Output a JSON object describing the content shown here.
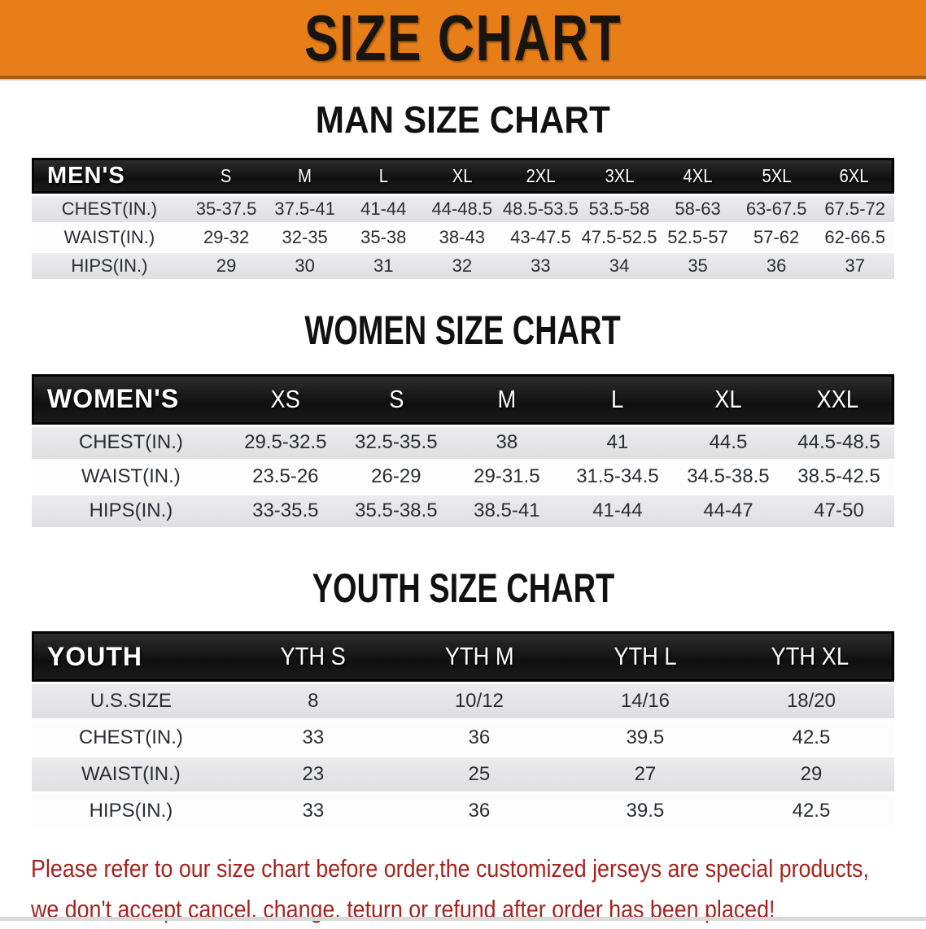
{
  "banner": {
    "title": "SIZE CHART",
    "bg_color": "#e87e18"
  },
  "sections": [
    {
      "id": "mens",
      "heading": "MAN SIZE CHART",
      "label": "MEN'S",
      "columns": [
        "S",
        "M",
        "L",
        "XL",
        "2XL",
        "3XL",
        "4XL",
        "5XL",
        "6XL"
      ],
      "rows": [
        {
          "label": "CHEST(IN.)",
          "values": [
            "35-37.5",
            "37.5-41",
            "41-44",
            "44-48.5",
            "48.5-53.5",
            "53.5-58",
            "58-63",
            "63-67.5",
            "67.5-72"
          ]
        },
        {
          "label": "WAIST(IN.)",
          "values": [
            "29-32",
            "32-35",
            "35-38",
            "38-43",
            "43-47.5",
            "47.5-52.5",
            "52.5-57",
            "57-62",
            "62-66.5"
          ]
        },
        {
          "label": "HIPS(IN.)",
          "values": [
            "29",
            "30",
            "31",
            "32",
            "33",
            "34",
            "35",
            "36",
            "37"
          ]
        }
      ]
    },
    {
      "id": "womens",
      "heading": "WOMEN SIZE CHART",
      "label": "WOMEN'S",
      "columns": [
        "XS",
        "S",
        "M",
        "L",
        "XL",
        "XXL"
      ],
      "rows": [
        {
          "label": "CHEST(IN.)",
          "values": [
            "29.5-32.5",
            "32.5-35.5",
            "38",
            "41",
            "44.5",
            "44.5-48.5"
          ]
        },
        {
          "label": "WAIST(IN.)",
          "values": [
            "23.5-26",
            "26-29",
            "29-31.5",
            "31.5-34.5",
            "34.5-38.5",
            "38.5-42.5"
          ]
        },
        {
          "label": "HIPS(IN.)",
          "values": [
            "33-35.5",
            "35.5-38.5",
            "38.5-41",
            "41-44",
            "44-47",
            "47-50"
          ]
        }
      ]
    },
    {
      "id": "youth",
      "heading": "YOUTH SIZE CHART",
      "label": "YOUTH",
      "columns": [
        "YTH S",
        "YTH M",
        "YTH L",
        "YTH XL"
      ],
      "rows": [
        {
          "label": "U.S.SIZE",
          "values": [
            "8",
            "10/12",
            "14/16",
            "18/20"
          ]
        },
        {
          "label": "CHEST(IN.)",
          "values": [
            "33",
            "36",
            "39.5",
            "42.5"
          ]
        },
        {
          "label": "WAIST(IN.)",
          "values": [
            "23",
            "25",
            "27",
            "29"
          ]
        },
        {
          "label": "HIPS(IN.)",
          "values": [
            "33",
            "36",
            "39.5",
            "42.5"
          ]
        }
      ]
    }
  ],
  "footer": {
    "line1": "Please refer to our size chart before order,the customized jerseys are special products,",
    "line2": "we don't accept cancel, change, teturn or refund after order has been placed!",
    "text_color": "#a3241f"
  },
  "colors": {
    "banner_orange": "#e87e18",
    "header_bar_black": "#141414",
    "row_gray": "#e4e4e6",
    "footer_red": "#a3241f"
  }
}
